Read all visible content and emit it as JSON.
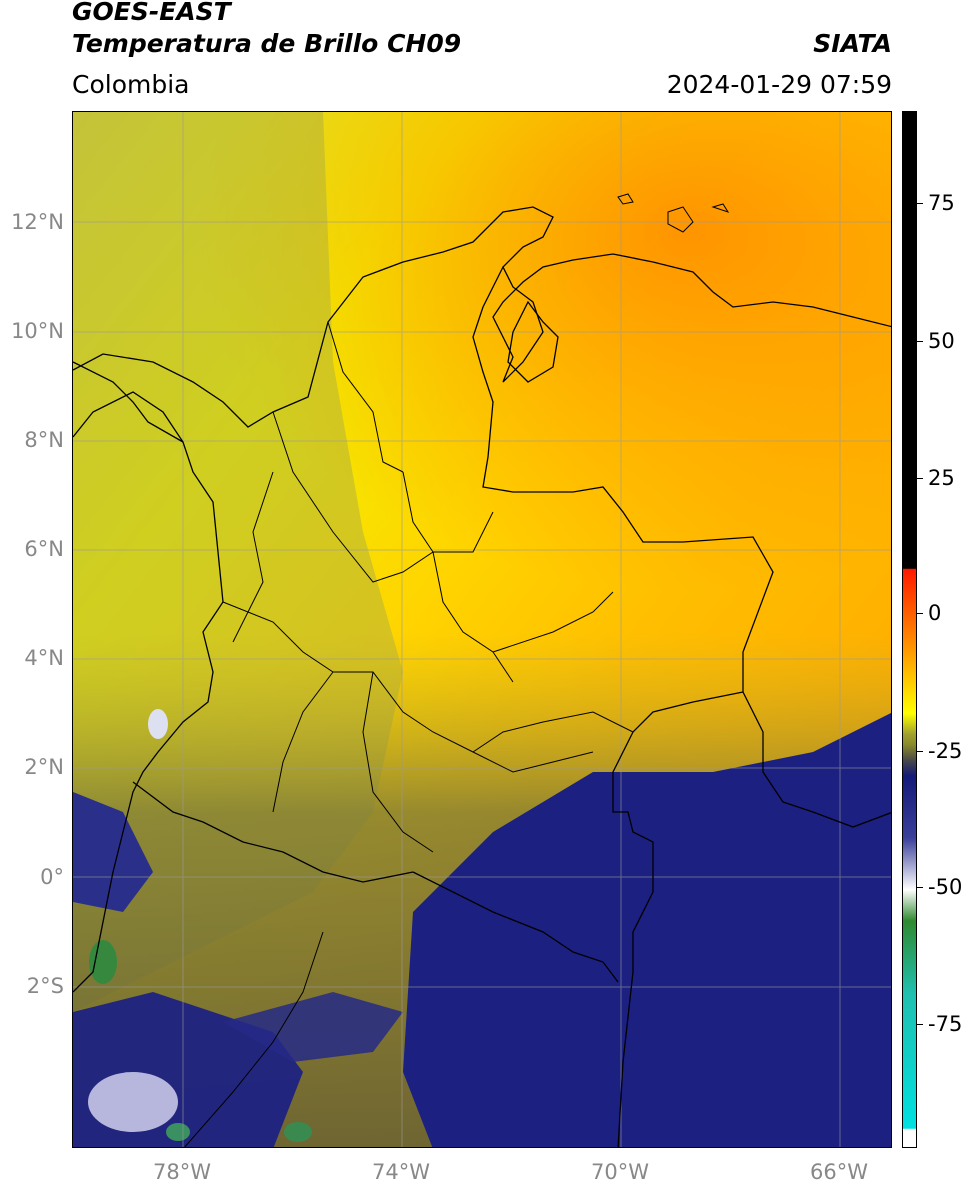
{
  "header": {
    "title_line1": "GOES-EAST",
    "title_line2": "Temperatura de Brillo CH09",
    "brand": "SIATA",
    "region": "Colombia",
    "timestamp": "2024-01-29 07:59"
  },
  "axes": {
    "lat_labels": [
      "12°N",
      "10°N",
      "8°N",
      "6°N",
      "4°N",
      "2°N",
      "0°",
      "2°S"
    ],
    "lon_labels": [
      "78°W",
      "74°W",
      "70°W",
      "66°W"
    ]
  },
  "colorbar": {
    "tick_labels": [
      "75",
      "50",
      "25",
      "0",
      "-25",
      "-50",
      "-75"
    ],
    "colors": {
      "black": "#000000",
      "red": "#ff1a00",
      "orange": "#ff9a00",
      "yellow": "#ffff00",
      "olive": "#8a8a2a",
      "navy": "#141a78",
      "white": "#ffffff",
      "green": "#2f8a2f",
      "teal": "#20c0b0",
      "cyan": "#00e0e0"
    }
  },
  "colors": {
    "warm": "#ff9a00",
    "mid": "#ffea00",
    "olive": "#b8b830",
    "cold": "#1a1f7a"
  }
}
